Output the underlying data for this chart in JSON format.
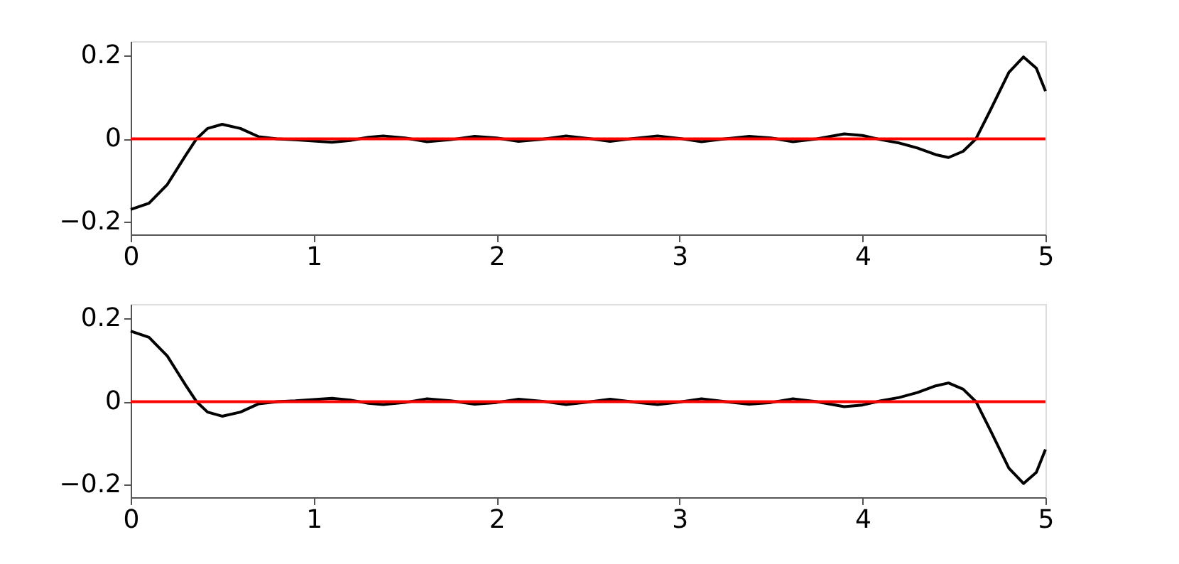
{
  "chart_data": [
    {
      "type": "line",
      "x": [
        0,
        0.1,
        0.2,
        0.3,
        0.36,
        0.42,
        0.5,
        0.6,
        0.7,
        0.8,
        0.9,
        1.0,
        1.1,
        1.2,
        1.3,
        1.38,
        1.5,
        1.62,
        1.75,
        1.88,
        2.0,
        2.12,
        2.25,
        2.38,
        2.5,
        2.62,
        2.75,
        2.88,
        3.0,
        3.12,
        3.25,
        3.38,
        3.5,
        3.62,
        3.75,
        3.9,
        4.0,
        4.1,
        4.2,
        4.3,
        4.4,
        4.47,
        4.55,
        4.62,
        4.7,
        4.8,
        4.88,
        4.95,
        5.0
      ],
      "series": [
        {
          "color": "#000000",
          "values": [
            -0.17,
            -0.155,
            -0.11,
            -0.04,
            0,
            0.025,
            0.035,
            0.025,
            0.005,
            0,
            -0.002,
            -0.005,
            -0.008,
            -0.004,
            0.004,
            0.007,
            0.002,
            -0.007,
            -0.002,
            0.006,
            0.002,
            -0.006,
            -0.001,
            0.007,
            0.001,
            -0.006,
            0.001,
            0.007,
            0.001,
            -0.007,
            0,
            0.006,
            0.002,
            -0.007,
            0,
            0.012,
            0.008,
            -0.002,
            -0.01,
            -0.022,
            -0.038,
            -0.045,
            -0.03,
            0,
            0.07,
            0.16,
            0.197,
            0.17,
            0.115
          ]
        }
      ],
      "xlim": [
        0,
        5
      ],
      "xticks": [
        0,
        1,
        2,
        3,
        4,
        5
      ],
      "ylim": [
        -0.23,
        0.235
      ],
      "yticks": [
        {
          "value": -0.2,
          "label": "−0.2"
        },
        0,
        0.2
      ],
      "ref_lines": [
        {
          "axis": "y",
          "value": 0,
          "color": "#ff0000"
        }
      ],
      "grid": false
    },
    {
      "type": "line",
      "x": [
        0,
        0.1,
        0.2,
        0.3,
        0.36,
        0.42,
        0.5,
        0.6,
        0.7,
        0.8,
        0.9,
        1.0,
        1.1,
        1.2,
        1.3,
        1.38,
        1.5,
        1.62,
        1.75,
        1.88,
        2.0,
        2.12,
        2.25,
        2.38,
        2.5,
        2.62,
        2.75,
        2.88,
        3.0,
        3.12,
        3.25,
        3.38,
        3.5,
        3.62,
        3.75,
        3.9,
        4.0,
        4.1,
        4.2,
        4.3,
        4.4,
        4.47,
        4.55,
        4.62,
        4.7,
        4.8,
        4.88,
        4.95,
        5.0
      ],
      "series": [
        {
          "color": "#000000",
          "values": [
            0.17,
            0.155,
            0.11,
            0.04,
            0,
            -0.025,
            -0.035,
            -0.025,
            -0.005,
            0,
            0.002,
            0.005,
            0.008,
            0.004,
            -0.004,
            -0.007,
            -0.002,
            0.007,
            0.002,
            -0.006,
            -0.002,
            0.006,
            0.001,
            -0.007,
            -0.001,
            0.006,
            -0.001,
            -0.007,
            -0.001,
            0.007,
            0,
            -0.006,
            -0.002,
            0.007,
            0,
            -0.012,
            -0.008,
            0.002,
            0.01,
            0.022,
            0.038,
            0.045,
            0.03,
            0,
            -0.07,
            -0.16,
            -0.197,
            -0.17,
            -0.115
          ]
        }
      ],
      "xlim": [
        0,
        5
      ],
      "xticks": [
        0,
        1,
        2,
        3,
        4,
        5
      ],
      "ylim": [
        -0.23,
        0.235
      ],
      "yticks": [
        {
          "value": -0.2,
          "label": "−0.2"
        },
        0,
        0.2
      ],
      "ref_lines": [
        {
          "axis": "y",
          "value": 0,
          "color": "#ff0000"
        }
      ],
      "grid": false
    }
  ]
}
